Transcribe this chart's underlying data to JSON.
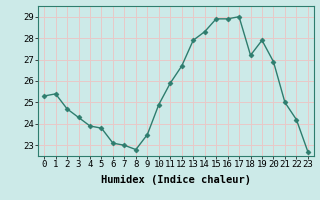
{
  "x": [
    0,
    1,
    2,
    3,
    4,
    5,
    6,
    7,
    8,
    9,
    10,
    11,
    12,
    13,
    14,
    15,
    16,
    17,
    18,
    19,
    20,
    21,
    22,
    23
  ],
  "y": [
    25.3,
    25.4,
    24.7,
    24.3,
    23.9,
    23.8,
    23.1,
    23.0,
    22.8,
    23.5,
    24.9,
    25.9,
    26.7,
    27.9,
    28.3,
    28.9,
    28.9,
    29.0,
    27.2,
    27.9,
    26.9,
    25.0,
    24.2,
    22.7
  ],
  "line_color": "#2e7d6e",
  "marker": "D",
  "marker_size": 2.5,
  "bg_color": "#cceae8",
  "grid_color": "#e8c8c8",
  "xlabel": "Humidex (Indice chaleur)",
  "ylim": [
    22.5,
    29.5
  ],
  "xlim": [
    -0.5,
    23.5
  ],
  "yticks": [
    23,
    24,
    25,
    26,
    27,
    28,
    29
  ],
  "xticks": [
    0,
    1,
    2,
    3,
    4,
    5,
    6,
    7,
    8,
    9,
    10,
    11,
    12,
    13,
    14,
    15,
    16,
    17,
    18,
    19,
    20,
    21,
    22,
    23
  ],
  "xlabel_fontsize": 7.5,
  "tick_fontsize": 6.5,
  "linewidth": 1.0
}
